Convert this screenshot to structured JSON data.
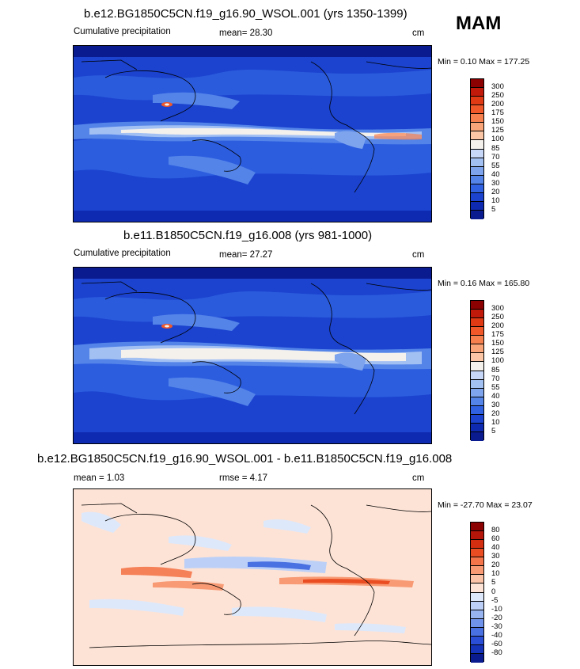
{
  "season": "MAM",
  "panels": [
    {
      "title": "b.e12.BG1850C5CN.f19_g16.90_WSOL.001 (yrs 1350-1399)",
      "left_label": "Cumulative precipitation",
      "center_label": "mean=  28.30",
      "units": "cm",
      "minmax": "Min =   0.10 Max = 177.25",
      "colorbar_labels": [
        "300",
        "250",
        "200",
        "175",
        "150",
        "125",
        "100",
        "85",
        "70",
        "55",
        "40",
        "30",
        "20",
        "10",
        "5"
      ],
      "colorbar_colors": [
        "#8b0000",
        "#c21a0a",
        "#e03a14",
        "#f0582a",
        "#f6804e",
        "#f9a579",
        "#fbc6a5",
        "#f4f0ec",
        "#c6d7f7",
        "#a3c0f3",
        "#7ea4ee",
        "#5484e8",
        "#2f61e0",
        "#1b43cf",
        "#0e2ab0",
        "#0a1a8f"
      ]
    },
    {
      "title": "b.e11.B1850C5CN.f19_g16.008 (yrs 981-1000)",
      "left_label": "Cumulative precipitation",
      "center_label": "mean=  27.27",
      "units": "cm",
      "minmax": "Min =   0.16 Max = 165.80",
      "colorbar_labels": [
        "300",
        "250",
        "200",
        "175",
        "150",
        "125",
        "100",
        "85",
        "70",
        "55",
        "40",
        "30",
        "20",
        "10",
        "5"
      ],
      "colorbar_colors": [
        "#8b0000",
        "#c21a0a",
        "#e03a14",
        "#f0582a",
        "#f6804e",
        "#f9a579",
        "#fbc6a5",
        "#f4f0ec",
        "#c6d7f7",
        "#a3c0f3",
        "#7ea4ee",
        "#5484e8",
        "#2f61e0",
        "#1b43cf",
        "#0e2ab0",
        "#0a1a8f"
      ]
    },
    {
      "title": "b.e12.BG1850C5CN.f19_g16.90_WSOL.001 - b.e11.B1850C5CN.f19_g16.008",
      "left_label": "mean =   1.03",
      "center_label": "rmse =   4.17",
      "units": "cm",
      "minmax": "Min = -27.70 Max =  23.07",
      "colorbar_labels": [
        "80",
        "60",
        "40",
        "30",
        "20",
        "10",
        "5",
        "0",
        "-5",
        "-10",
        "-20",
        "-30",
        "-40",
        "-60",
        "-80"
      ],
      "colorbar_colors": [
        "#8b0000",
        "#b51408",
        "#d42e10",
        "#ea4d22",
        "#f4754a",
        "#f89b75",
        "#fbc3a7",
        "#fde3d6",
        "#dde8fb",
        "#bcd0f7",
        "#97b4f1",
        "#6f93ea",
        "#4a71e2",
        "#2a4fd6",
        "#1533b8",
        "#0a1a8f"
      ]
    }
  ]
}
